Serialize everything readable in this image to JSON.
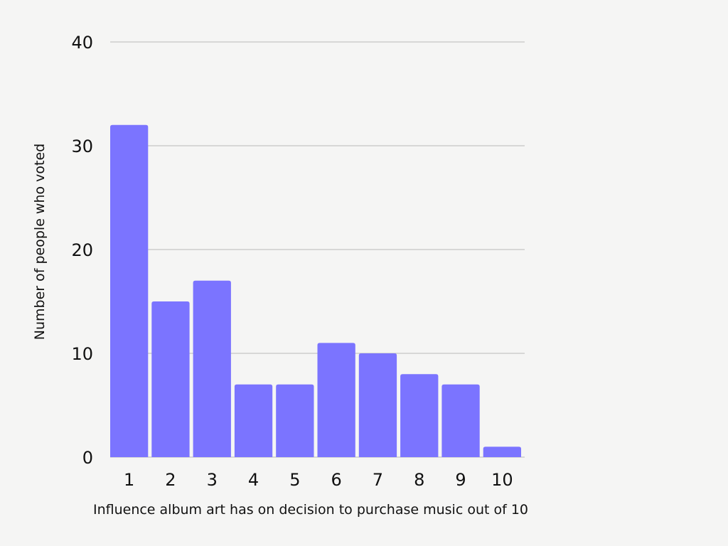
{
  "chart_data": {
    "type": "bar",
    "categories": [
      "1",
      "2",
      "3",
      "4",
      "5",
      "6",
      "7",
      "8",
      "9",
      "10"
    ],
    "values": [
      32,
      15,
      17,
      7,
      7,
      11,
      10,
      8,
      7,
      1
    ],
    "title": "",
    "xlabel": "Influence album art has on decision to purchase music out of 10",
    "ylabel": "Number of people who voted",
    "ylim": [
      0,
      40
    ],
    "yticks": [
      0,
      10,
      20,
      30,
      40
    ],
    "grid": true,
    "bar_color": "#7b74ff",
    "background_color": "#f5f5f4"
  }
}
